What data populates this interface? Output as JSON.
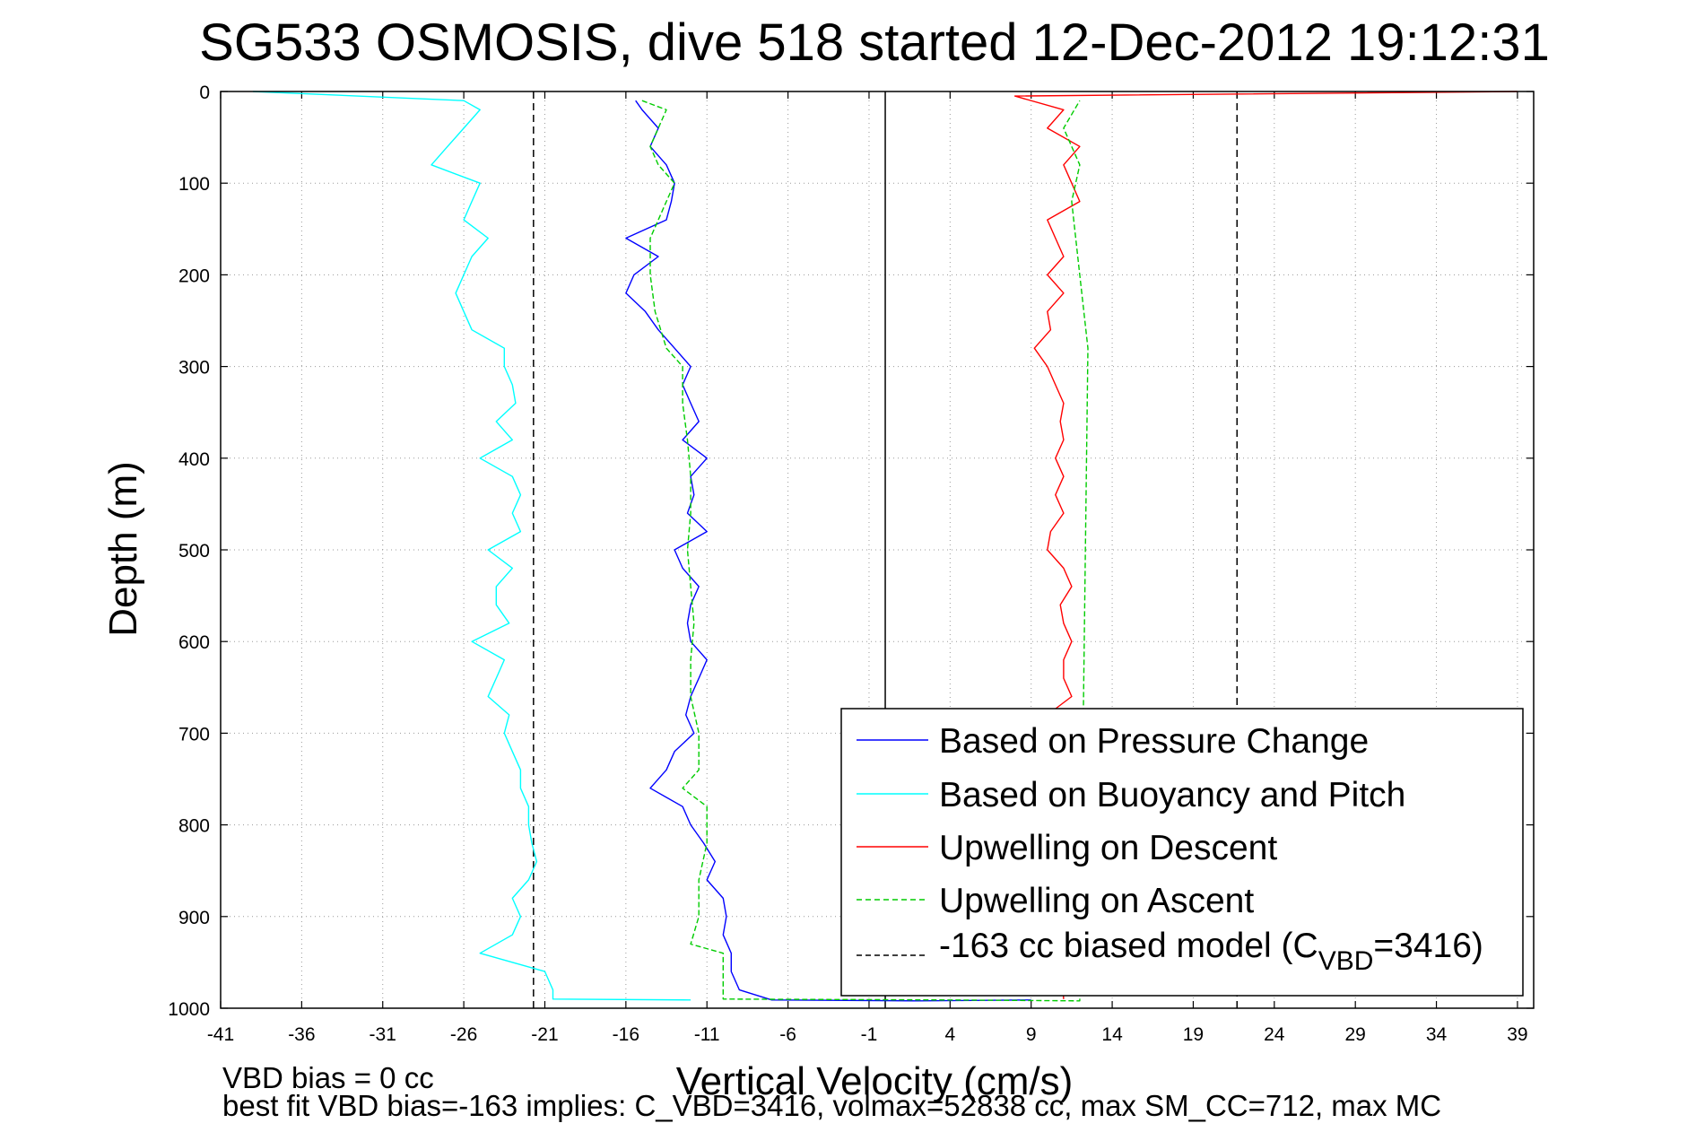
{
  "chart_data": {
    "type": "line",
    "title": "SG533 OSMOSIS, dive 518 started 12-Dec-2012 19:12:31",
    "xlabel": "Vertical Velocity (cm/s)",
    "ylabel": "Depth (m)",
    "xlim": [
      -41,
      40
    ],
    "ylim": [
      1000,
      0
    ],
    "x_ticks": [
      -41,
      -36,
      -31,
      -26,
      -21,
      -16,
      -11,
      -6,
      -1,
      4,
      9,
      14,
      19,
      24,
      29,
      34,
      39
    ],
    "y_ticks": [
      0,
      100,
      200,
      300,
      400,
      500,
      600,
      700,
      800,
      900,
      1000
    ],
    "grid": true,
    "legend_position": "bottom-right",
    "vertical_lines": [
      {
        "x": -21.7,
        "style": "dashed",
        "color": "#000000"
      },
      {
        "x": 0,
        "style": "solid",
        "color": "#000000"
      },
      {
        "x": 21.7,
        "style": "dashed",
        "color": "#000000"
      }
    ],
    "series": [
      {
        "name": "Based on Pressure Change",
        "color": "#0000ff",
        "style": "solid",
        "points": [
          [
            -15.4,
            10
          ],
          [
            -15,
            20
          ],
          [
            -14,
            40
          ],
          [
            -14.5,
            60
          ],
          [
            -13.5,
            80
          ],
          [
            -13,
            100
          ],
          [
            -13.2,
            120
          ],
          [
            -13.5,
            140
          ],
          [
            -16,
            160
          ],
          [
            -14,
            180
          ],
          [
            -15.5,
            200
          ],
          [
            -16,
            220
          ],
          [
            -14.8,
            240
          ],
          [
            -14,
            260
          ],
          [
            -13,
            280
          ],
          [
            -12,
            300
          ],
          [
            -12.5,
            320
          ],
          [
            -12,
            340
          ],
          [
            -11.5,
            360
          ],
          [
            -12.5,
            380
          ],
          [
            -11,
            400
          ],
          [
            -12,
            420
          ],
          [
            -11.8,
            440
          ],
          [
            -12.2,
            460
          ],
          [
            -11,
            480
          ],
          [
            -13,
            500
          ],
          [
            -12.5,
            520
          ],
          [
            -11.5,
            540
          ],
          [
            -12,
            560
          ],
          [
            -12.2,
            580
          ],
          [
            -12,
            600
          ],
          [
            -11,
            620
          ],
          [
            -11.5,
            640
          ],
          [
            -12,
            660
          ],
          [
            -12.3,
            680
          ],
          [
            -11.8,
            700
          ],
          [
            -13,
            720
          ],
          [
            -13.5,
            740
          ],
          [
            -14.5,
            760
          ],
          [
            -12.5,
            780
          ],
          [
            -12,
            800
          ],
          [
            -11.2,
            820
          ],
          [
            -10.5,
            840
          ],
          [
            -11,
            860
          ],
          [
            -10,
            880
          ],
          [
            -9.8,
            900
          ],
          [
            -10,
            920
          ],
          [
            -9.5,
            940
          ],
          [
            -9.5,
            960
          ],
          [
            -9,
            980
          ],
          [
            -7,
            991
          ],
          [
            2,
            992
          ],
          [
            9,
            991
          ]
        ]
      },
      {
        "name": "Based on Buoyancy and Pitch",
        "color": "#00ffff",
        "style": "solid",
        "points": [
          [
            -39,
            0
          ],
          [
            -26,
            10
          ],
          [
            -25,
            20
          ],
          [
            -26,
            40
          ],
          [
            -27,
            60
          ],
          [
            -28,
            80
          ],
          [
            -25,
            100
          ],
          [
            -25.5,
            120
          ],
          [
            -26,
            140
          ],
          [
            -24.5,
            160
          ],
          [
            -25.5,
            180
          ],
          [
            -26,
            200
          ],
          [
            -26.5,
            220
          ],
          [
            -26,
            240
          ],
          [
            -25.5,
            260
          ],
          [
            -23.5,
            280
          ],
          [
            -23.5,
            300
          ],
          [
            -23,
            320
          ],
          [
            -22.8,
            340
          ],
          [
            -24,
            360
          ],
          [
            -23,
            380
          ],
          [
            -25,
            400
          ],
          [
            -23,
            420
          ],
          [
            -22.5,
            440
          ],
          [
            -23,
            460
          ],
          [
            -22.5,
            480
          ],
          [
            -24.5,
            500
          ],
          [
            -23,
            520
          ],
          [
            -24,
            540
          ],
          [
            -24,
            560
          ],
          [
            -23.2,
            580
          ],
          [
            -25.5,
            600
          ],
          [
            -23.5,
            620
          ],
          [
            -24,
            640
          ],
          [
            -24.5,
            660
          ],
          [
            -23.2,
            680
          ],
          [
            -23.5,
            700
          ],
          [
            -23,
            720
          ],
          [
            -22.5,
            740
          ],
          [
            -22.5,
            760
          ],
          [
            -22,
            780
          ],
          [
            -22,
            800
          ],
          [
            -21.8,
            820
          ],
          [
            -21.5,
            840
          ],
          [
            -22,
            860
          ],
          [
            -23,
            880
          ],
          [
            -22.5,
            900
          ],
          [
            -23,
            920
          ],
          [
            -25,
            940
          ],
          [
            -21,
            960
          ],
          [
            -20.5,
            980
          ],
          [
            -20.5,
            990
          ],
          [
            -12,
            991
          ]
        ]
      },
      {
        "name": "Upwelling on Descent",
        "color": "#ff0000",
        "style": "solid",
        "points": [
          [
            39,
            0
          ],
          [
            8,
            5
          ],
          [
            11,
            20
          ],
          [
            10,
            40
          ],
          [
            12,
            60
          ],
          [
            11,
            80
          ],
          [
            11.5,
            100
          ],
          [
            12,
            120
          ],
          [
            10,
            140
          ],
          [
            10.5,
            160
          ],
          [
            11,
            180
          ],
          [
            10,
            200
          ],
          [
            11,
            220
          ],
          [
            10,
            240
          ],
          [
            10.2,
            260
          ],
          [
            9.2,
            280
          ],
          [
            10,
            300
          ],
          [
            10.5,
            320
          ],
          [
            11,
            340
          ],
          [
            10.8,
            360
          ],
          [
            11,
            380
          ],
          [
            10.5,
            400
          ],
          [
            11,
            420
          ],
          [
            10.5,
            440
          ],
          [
            11,
            460
          ],
          [
            10.2,
            480
          ],
          [
            10,
            500
          ],
          [
            11,
            520
          ],
          [
            11.5,
            540
          ],
          [
            10.8,
            560
          ],
          [
            11,
            580
          ],
          [
            11.5,
            600
          ],
          [
            11,
            620
          ],
          [
            11,
            640
          ],
          [
            11.5,
            660
          ],
          [
            10,
            680
          ],
          [
            11,
            990
          ]
        ]
      },
      {
        "name": "Upwelling on Ascent",
        "color": "#00cc00",
        "style": "dashed",
        "points": [
          [
            -15,
            10
          ],
          [
            -13.5,
            20
          ],
          [
            -14,
            40
          ],
          [
            -14.5,
            60
          ],
          [
            -14,
            80
          ],
          [
            -13,
            100
          ],
          [
            -13.5,
            120
          ],
          [
            -14,
            140
          ],
          [
            -14.5,
            160
          ],
          [
            -14.5,
            200
          ],
          [
            -14.2,
            240
          ],
          [
            -13.5,
            280
          ],
          [
            -12.5,
            300
          ],
          [
            -12.5,
            340
          ],
          [
            -12.2,
            380
          ],
          [
            -12,
            420
          ],
          [
            -12,
            460
          ],
          [
            -12.2,
            500
          ],
          [
            -12,
            540
          ],
          [
            -11.8,
            580
          ],
          [
            -12,
            620
          ],
          [
            -12,
            660
          ],
          [
            -11.5,
            700
          ],
          [
            -11.5,
            740
          ],
          [
            -12.5,
            760
          ],
          [
            -11,
            780
          ],
          [
            -11,
            820
          ],
          [
            -11.5,
            860
          ],
          [
            -11.5,
            900
          ],
          [
            -12,
            930
          ],
          [
            -10,
            940
          ],
          [
            -10,
            990
          ],
          [
            4,
            991
          ],
          [
            12,
            992
          ],
          [
            12.5,
            280
          ],
          [
            12,
            200
          ],
          [
            11.5,
            120
          ],
          [
            12,
            80
          ],
          [
            11,
            40
          ],
          [
            12,
            10
          ]
        ]
      }
    ]
  },
  "legend": {
    "items": [
      {
        "label": "Based on Pressure Change",
        "color": "#0000ff",
        "style": "solid"
      },
      {
        "label": "Based on Buoyancy and Pitch",
        "color": "#00ffff",
        "style": "solid"
      },
      {
        "label": "Upwelling on Descent",
        "color": "#ff0000",
        "style": "solid"
      },
      {
        "label": "Upwelling on Ascent",
        "color": "#00cc00",
        "style": "dashed"
      },
      {
        "label_main": "-163 cc biased model (C",
        "label_sub": "VBD",
        "label_tail": "=3416)",
        "color": "#000000",
        "style": "dashed"
      }
    ]
  },
  "footer": {
    "line1": "VBD bias = 0 cc",
    "line2": "best fit VBD bias=-163 implies: C_VBD=3416, volmax=52838 cc, max SM_CC=712, max MC"
  }
}
